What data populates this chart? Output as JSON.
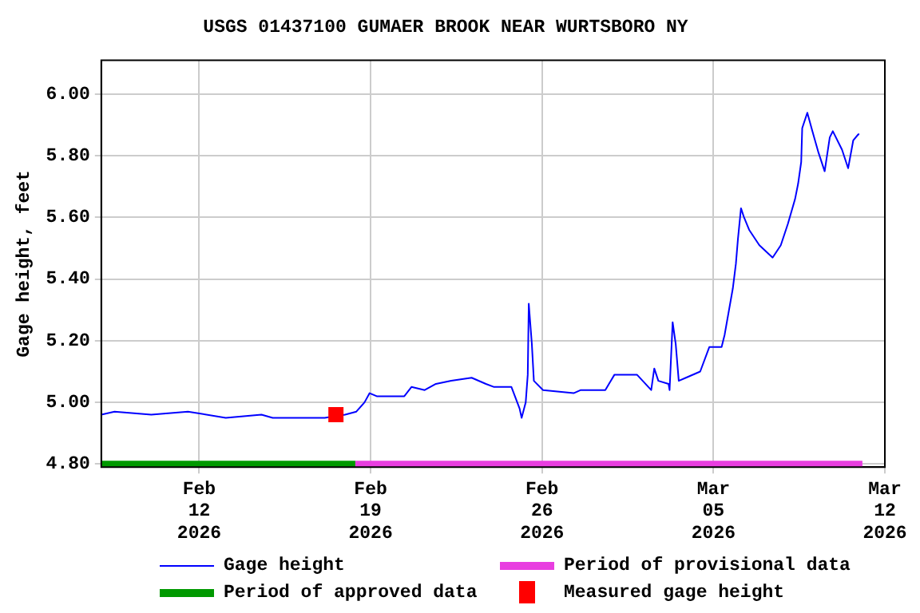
{
  "chart_data": {
    "type": "line",
    "title": "USGS 01437100 GUMAER BROOK NEAR WURTSBORO NY",
    "ylabel": "Gage height, feet",
    "xlim": [
      "2026-02-08T00:00",
      "2026-03-12T00:00"
    ],
    "xticks": [
      {
        "value": "2026-02-12",
        "label": "Feb\n12\n2026"
      },
      {
        "value": "2026-02-19",
        "label": "Feb\n19\n2026"
      },
      {
        "value": "2026-02-26",
        "label": "Feb\n26\n2026"
      },
      {
        "value": "2026-03-05",
        "label": "Mar\n05\n2026"
      },
      {
        "value": "2026-03-12",
        "label": "Mar\n12\n2026"
      }
    ],
    "ylim": [
      4.79,
      6.11
    ],
    "yticks": [
      {
        "value": 4.8,
        "label": "4.80"
      },
      {
        "value": 5.0,
        "label": "5.00"
      },
      {
        "value": 5.2,
        "label": "5.20"
      },
      {
        "value": 5.4,
        "label": "5.40"
      },
      {
        "value": 5.6,
        "label": "5.60"
      },
      {
        "value": 5.8,
        "label": "5.80"
      },
      {
        "value": 6.0,
        "label": "6.00"
      }
    ],
    "grid": true,
    "legend": "bottom",
    "series": [
      {
        "name": "Gage height",
        "color": "#0000ff",
        "x": [
          "2026-02-08T00:00",
          "2026-02-08T13:00",
          "2026-02-10T01:00",
          "2026-02-11T13:00",
          "2026-02-13T02:00",
          "2026-02-14T13:00",
          "2026-02-15T00:00",
          "2026-02-17T03:00",
          "2026-02-17T23:00",
          "2026-02-18T10:00",
          "2026-02-18T18:00",
          "2026-02-18T23:00",
          "2026-02-19T06:00",
          "2026-02-20T09:00",
          "2026-02-20T16:00",
          "2026-02-21T05:00",
          "2026-02-21T16:00",
          "2026-02-22T07:00",
          "2026-02-23T03:00",
          "2026-02-23T17:00",
          "2026-02-24T01:00",
          "2026-02-24T18:00",
          "2026-02-25T02:00",
          "2026-02-25T04:00",
          "2026-02-25T08:00",
          "2026-02-25T10:00",
          "2026-02-25T11:00",
          "2026-02-25T14:00",
          "2026-02-25T16:00",
          "2026-02-26T01:00",
          "2026-02-27T07:00",
          "2026-02-27T14:00",
          "2026-02-28T14:00",
          "2026-02-28T23:00",
          "2026-03-01T21:00",
          "2026-03-02T11:00",
          "2026-03-02T14:00",
          "2026-03-02T18:00",
          "2026-03-03T04:00",
          "2026-03-03T05:00",
          "2026-03-03T08:00",
          "2026-03-03T11:00",
          "2026-03-03T14:00",
          "2026-03-03T21:00",
          "2026-03-04T11:00",
          "2026-03-04T20:00",
          "2026-03-05T08:00",
          "2026-03-05T11:00",
          "2026-03-05T19:00",
          "2026-03-05T22:00",
          "2026-03-06T00:00",
          "2026-03-06T03:00",
          "2026-03-06T06:00",
          "2026-03-06T11:00",
          "2026-03-06T21:00",
          "2026-03-07T10:00",
          "2026-03-07T18:00",
          "2026-03-08T01:00",
          "2026-03-08T08:00",
          "2026-03-08T11:00",
          "2026-03-08T14:00",
          "2026-03-08T15:00",
          "2026-03-08T20:00",
          "2026-03-09T01:00",
          "2026-03-09T07:00",
          "2026-03-09T13:00",
          "2026-03-09T18:00",
          "2026-03-09T21:00",
          "2026-03-10T06:00",
          "2026-03-10T12:00",
          "2026-03-10T17:00",
          "2026-03-10T22:00",
          "2026-03-10T23:00"
        ],
        "values": [
          4.96,
          4.97,
          4.96,
          4.97,
          4.95,
          4.96,
          4.95,
          4.95,
          4.96,
          4.97,
          5.0,
          5.03,
          5.02,
          5.02,
          5.05,
          5.04,
          5.06,
          5.07,
          5.08,
          5.06,
          5.05,
          5.05,
          4.98,
          4.95,
          5.0,
          5.09,
          5.32,
          5.19,
          5.07,
          5.04,
          5.03,
          5.04,
          5.04,
          5.09,
          5.09,
          5.04,
          5.11,
          5.07,
          5.06,
          5.04,
          5.26,
          5.19,
          5.07,
          5.08,
          5.1,
          5.18,
          5.18,
          5.22,
          5.37,
          5.45,
          5.53,
          5.63,
          5.6,
          5.56,
          5.51,
          5.47,
          5.51,
          5.58,
          5.66,
          5.71,
          5.78,
          5.89,
          5.94,
          5.88,
          5.81,
          5.75,
          5.86,
          5.88,
          5.82,
          5.76,
          5.85,
          5.87,
          5.87
        ]
      },
      {
        "name": "Period of provisional data",
        "color": "#e83ee0",
        "x": [
          "2026-02-18T09:00",
          "2026-03-11T02:00"
        ],
        "values": [
          4.8,
          4.8
        ]
      },
      {
        "name": "Period of approved data",
        "color": "#009900",
        "x": [
          "2026-02-08T00:00",
          "2026-02-18T09:00"
        ],
        "values": [
          4.8,
          4.8
        ]
      },
      {
        "name": "Measured gage height",
        "type": "scatter",
        "marker": "square",
        "color": "#ff0000",
        "x": [
          "2026-02-17T14:00"
        ],
        "values": [
          4.96
        ]
      }
    ]
  }
}
